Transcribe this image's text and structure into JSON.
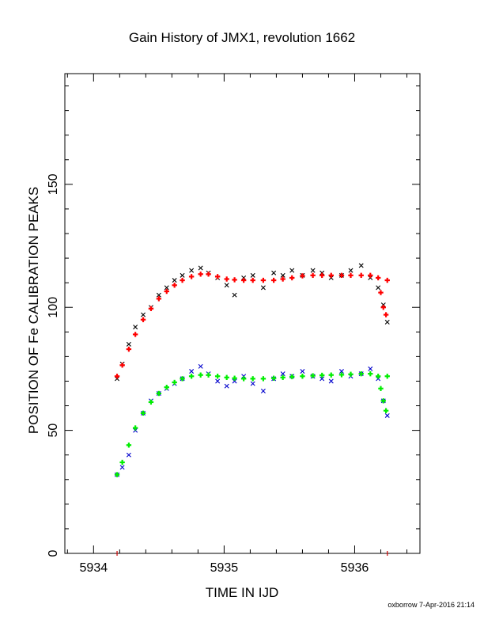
{
  "chart_data": {
    "type": "scatter",
    "title": "Gain History of JMX1, revolution 1662",
    "xlabel": "TIME IN IJD",
    "ylabel": "POSITION OF Fe CALIBRATION PEAKS",
    "xlim": [
      5933.78,
      5936.5
    ],
    "ylim": [
      0,
      195
    ],
    "x_ticks": [
      "5934",
      "5935",
      "5936"
    ],
    "y_ticks": [
      "0",
      "50",
      "100",
      "150"
    ],
    "grid": false,
    "colors": {
      "upper_raw": "#000000",
      "upper_fit": "#ff0000",
      "lower_raw": "#0000cc",
      "lower_fit": "#00ee00",
      "markers": "#cc0000"
    },
    "series": [
      {
        "marker": "x",
        "color": "#000000",
        "x": [
          5934.18,
          5934.22,
          5934.27,
          5934.32,
          5934.38,
          5934.44,
          5934.5,
          5934.56,
          5934.62,
          5934.68,
          5934.75,
          5934.82,
          5934.88,
          5934.95,
          5935.02,
          5935.08,
          5935.15,
          5935.22,
          5935.3,
          5935.38,
          5935.45,
          5935.52,
          5935.6,
          5935.68,
          5935.75,
          5935.82,
          5935.9,
          5935.97,
          5936.05,
          5936.12,
          5936.18,
          5936.22,
          5936.25
        ],
        "y": [
          71,
          77,
          85,
          92,
          97,
          100,
          105,
          108,
          111,
          113,
          115,
          116,
          114,
          112,
          109,
          105,
          112,
          113,
          108,
          114,
          113,
          115,
          113,
          115,
          114,
          112,
          113,
          115,
          117,
          112,
          108,
          101,
          94
        ]
      },
      {
        "marker": "+",
        "color": "#ff0000",
        "x": [
          5934.18,
          5934.22,
          5934.27,
          5934.32,
          5934.38,
          5934.44,
          5934.5,
          5934.56,
          5934.62,
          5934.68,
          5934.75,
          5934.82,
          5934.88,
          5934.95,
          5935.02,
          5935.08,
          5935.15,
          5935.22,
          5935.3,
          5935.38,
          5935.45,
          5935.52,
          5935.6,
          5935.68,
          5935.75,
          5935.82,
          5935.9,
          5935.97,
          5936.05,
          5936.12,
          5936.18,
          5936.2,
          5936.22,
          5936.24,
          5936.25
        ],
        "y": [
          72,
          76.5,
          83,
          89,
          95,
          99.5,
          103.5,
          106.5,
          109,
          111,
          112.5,
          113.5,
          113.5,
          112.5,
          111.5,
          111.2,
          111,
          111,
          111,
          111,
          111.5,
          112,
          112.8,
          113,
          113,
          113,
          113,
          113,
          113,
          113,
          112,
          106,
          100,
          97,
          111
        ]
      },
      {
        "marker": "x",
        "color": "#0000cc",
        "x": [
          5934.18,
          5934.22,
          5934.27,
          5934.32,
          5934.38,
          5934.44,
          5934.5,
          5934.56,
          5934.62,
          5934.68,
          5934.75,
          5934.82,
          5934.88,
          5934.95,
          5935.02,
          5935.08,
          5935.15,
          5935.22,
          5935.3,
          5935.38,
          5935.45,
          5935.52,
          5935.6,
          5935.68,
          5935.75,
          5935.82,
          5935.9,
          5935.97,
          5936.05,
          5936.12,
          5936.18,
          5936.22,
          5936.25
        ],
        "y": [
          32,
          35,
          40,
          50,
          57,
          62,
          65,
          67,
          69,
          71,
          74,
          76,
          73,
          70,
          68,
          70,
          72,
          69,
          66,
          71,
          73,
          72,
          74,
          72,
          71,
          70,
          74,
          72,
          73,
          75,
          71,
          62,
          56
        ]
      },
      {
        "marker": "+",
        "color": "#00ee00",
        "x": [
          5934.18,
          5934.22,
          5934.27,
          5934.32,
          5934.38,
          5934.44,
          5934.5,
          5934.56,
          5934.62,
          5934.68,
          5934.75,
          5934.82,
          5934.88,
          5934.95,
          5935.02,
          5935.08,
          5935.15,
          5935.22,
          5935.3,
          5935.38,
          5935.45,
          5935.52,
          5935.6,
          5935.68,
          5935.75,
          5935.82,
          5935.9,
          5935.97,
          5936.05,
          5936.12,
          5936.18,
          5936.2,
          5936.22,
          5936.24,
          5936.25
        ],
        "y": [
          32,
          37,
          44,
          51,
          57,
          61.5,
          65,
          67.5,
          69.5,
          71,
          72,
          72.5,
          72.5,
          72,
          71.5,
          71.2,
          71,
          71,
          71,
          71.2,
          71.5,
          71.8,
          72,
          72.2,
          72.4,
          72.5,
          72.6,
          72.8,
          73,
          73,
          72,
          67,
          62,
          58,
          72
        ]
      }
    ],
    "footer": "oxborrow  7-Apr-2016 21:14"
  }
}
